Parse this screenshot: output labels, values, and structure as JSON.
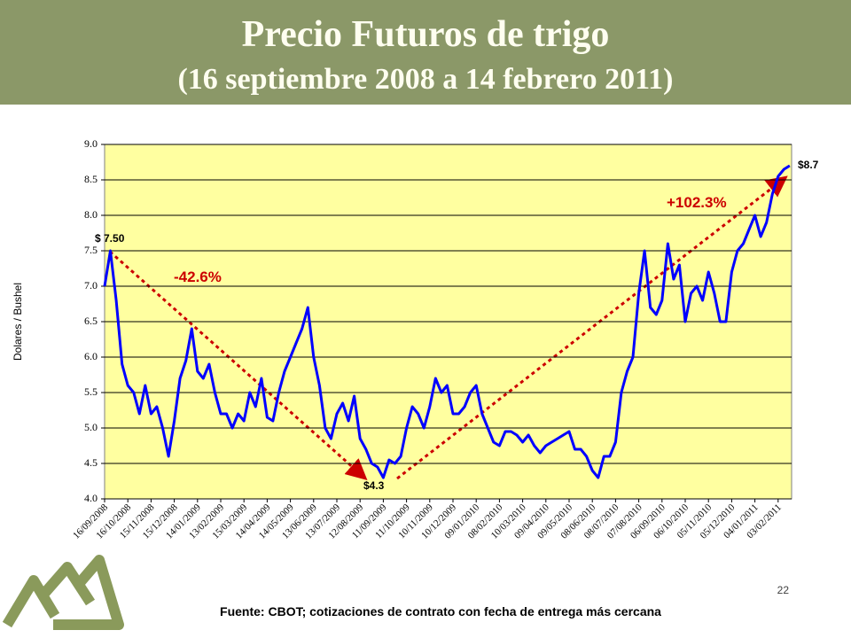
{
  "header": {
    "title": "Precio Futuros de trigo",
    "subtitle": "(16 septiembre 2008 a 14 febrero 2011)"
  },
  "chart_data": {
    "type": "line",
    "y_label": "Dolares / Bushel",
    "categories": [
      "16/09/2008",
      null,
      null,
      null,
      "16/10/2008",
      null,
      null,
      null,
      "15/11/2008",
      null,
      null,
      null,
      "15/12/2008",
      null,
      null,
      null,
      "14/01/2009",
      null,
      null,
      null,
      "13/02/2009",
      null,
      null,
      null,
      "15/03/2009",
      null,
      null,
      null,
      "14/04/2009",
      null,
      null,
      null,
      "14/05/2009",
      null,
      null,
      null,
      "13/06/2009",
      null,
      null,
      null,
      "13/07/2009",
      null,
      null,
      null,
      "12/08/2009",
      null,
      null,
      null,
      "11/09/2009",
      null,
      null,
      null,
      "11/10/2009",
      null,
      null,
      null,
      "10/11/2009",
      null,
      null,
      null,
      "10/12/2009",
      null,
      null,
      null,
      "09/01/2010",
      null,
      null,
      null,
      "08/02/2010",
      null,
      null,
      null,
      "10/03/2010",
      null,
      null,
      null,
      "09/04/2010",
      null,
      null,
      null,
      "09/05/2010",
      null,
      null,
      null,
      "08/06/2010",
      null,
      null,
      null,
      "08/07/2010",
      null,
      null,
      null,
      "07/08/2010",
      null,
      null,
      null,
      "06/09/2010",
      null,
      null,
      null,
      "06/10/2010",
      null,
      null,
      null,
      "05/11/2010",
      null,
      null,
      null,
      "05/12/2010",
      null,
      null,
      null,
      "04/01/2011",
      null,
      null,
      null,
      "03/02/2011",
      null,
      null
    ],
    "series": [
      {
        "name": "Trigo",
        "color": "#0000ff",
        "values": [
          7.0,
          7.5,
          6.8,
          5.9,
          5.6,
          5.5,
          5.2,
          5.6,
          5.2,
          5.3,
          5.0,
          4.6,
          5.1,
          5.7,
          5.95,
          6.4,
          5.8,
          5.7,
          5.9,
          5.5,
          5.2,
          5.2,
          5.0,
          5.2,
          5.1,
          5.5,
          5.3,
          5.7,
          5.15,
          5.1,
          5.5,
          5.8,
          6.0,
          6.2,
          6.4,
          6.7,
          6.0,
          5.6,
          5.0,
          4.85,
          5.2,
          5.35,
          5.1,
          5.45,
          4.85,
          4.7,
          4.5,
          4.45,
          4.3,
          4.55,
          4.5,
          4.6,
          5.0,
          5.3,
          5.2,
          5.0,
          5.3,
          5.7,
          5.5,
          5.6,
          5.2,
          5.2,
          5.3,
          5.5,
          5.6,
          5.2,
          5.0,
          4.8,
          4.75,
          4.95,
          4.95,
          4.9,
          4.8,
          4.9,
          4.75,
          4.65,
          4.75,
          4.8,
          4.85,
          4.9,
          4.95,
          4.7,
          4.7,
          4.6,
          4.4,
          4.3,
          4.6,
          4.6,
          4.8,
          5.5,
          5.8,
          6.0,
          6.9,
          7.5,
          6.7,
          6.6,
          6.8,
          7.6,
          7.1,
          7.3,
          6.5,
          6.9,
          7.0,
          6.8,
          7.2,
          6.9,
          6.5,
          6.5,
          7.2,
          7.5,
          7.6,
          7.8,
          8.0,
          7.7,
          7.9,
          8.3,
          8.55,
          8.65,
          8.7
        ]
      }
    ],
    "ylim": [
      4.0,
      9.0
    ],
    "yticks": [
      {
        "value": 4.0,
        "label": "4.0"
      },
      4.5,
      {
        "value": 5.0,
        "label": "5.0"
      },
      5.5,
      {
        "value": 6.0,
        "label": "6.0"
      },
      6.5,
      {
        "value": 7.0,
        "label": "7.0"
      },
      7.5,
      {
        "value": 8.0,
        "label": "8.0"
      },
      8.5,
      {
        "value": 9.0,
        "label": "9.0"
      }
    ],
    "grid": true,
    "annotations": [
      "$ 7.50",
      "-42.6%",
      "$4.3",
      "+102.3%",
      "$8.7"
    ]
  },
  "footer": {
    "source": "Fuente: CBOT; cotizaciones de contrato con fecha de entrega más cercana",
    "page": "22"
  }
}
